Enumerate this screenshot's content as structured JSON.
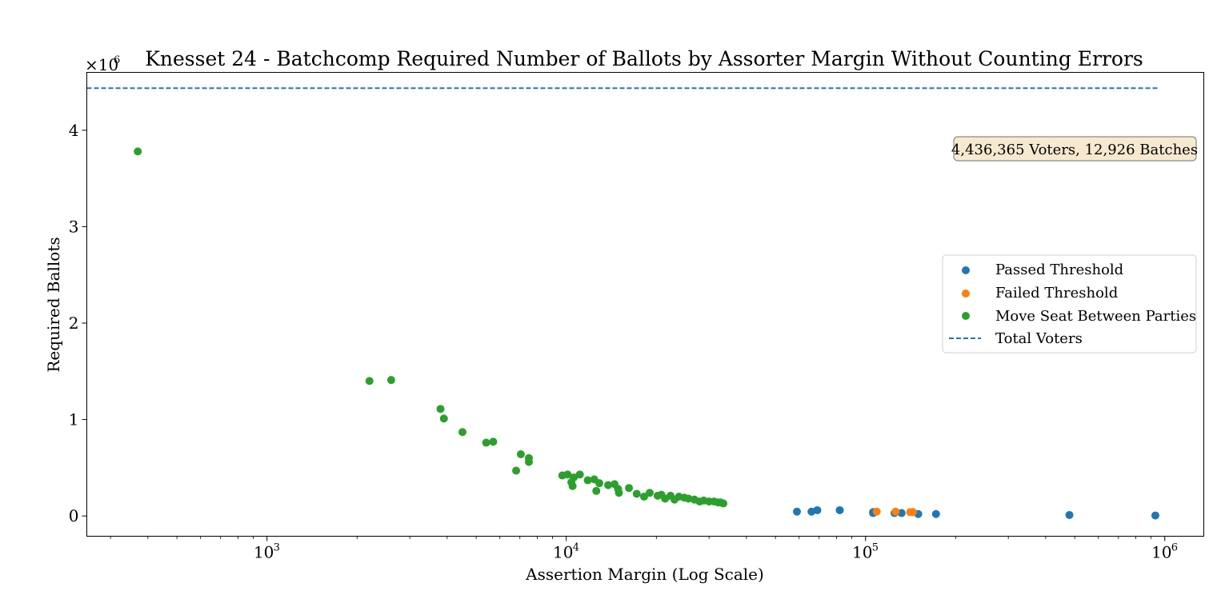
{
  "chart_data": {
    "type": "scatter",
    "title": "Knesset 24 - Batchcomp Required Number of Ballots by Assorter Margin Without Counting Errors",
    "xlabel": "Assertion Margin (Log Scale)",
    "ylabel": "Required Ballots",
    "x_scale": "log",
    "xlim": [
      250,
      1350000
    ],
    "ylim": [
      -210000,
      4600000
    ],
    "y_multiplier_label": "×10",
    "y_multiplier_exponent": "6",
    "x_ticks": [
      {
        "value": 1000,
        "base": "10",
        "exp": "3"
      },
      {
        "value": 10000,
        "base": "10",
        "exp": "4"
      },
      {
        "value": 100000,
        "base": "10",
        "exp": "5"
      },
      {
        "value": 1000000,
        "base": "10",
        "exp": "6"
      }
    ],
    "y_ticks": [
      {
        "value": 0,
        "label": "0"
      },
      {
        "value": 1000000,
        "label": "1"
      },
      {
        "value": 2000000,
        "label": "2"
      },
      {
        "value": 3000000,
        "label": "3"
      },
      {
        "value": 4000000,
        "label": "4"
      }
    ],
    "annotation": "4,436,365 Voters, 12,926 Batches",
    "legend_position": "center-right",
    "reference_line": {
      "name": "Total Voters",
      "y": 4436365,
      "x_range": [
        250,
        950000
      ],
      "color": "#1f77b4",
      "style": "dashed"
    },
    "series": [
      {
        "name": "Passed Threshold",
        "color": "#1f77b4",
        "points": [
          [
            59000,
            45000
          ],
          [
            66000,
            45000
          ],
          [
            69000,
            60000
          ],
          [
            82000,
            60000
          ],
          [
            106000,
            40000
          ],
          [
            106000,
            30000
          ],
          [
            125000,
            30000
          ],
          [
            132000,
            30000
          ],
          [
            150000,
            20000
          ],
          [
            172000,
            20000
          ],
          [
            480000,
            10000
          ],
          [
            930000,
            5000
          ]
        ]
      },
      {
        "name": "Failed Threshold",
        "color": "#ff7f0e",
        "points": [
          [
            109000,
            45000
          ],
          [
            126000,
            45000
          ],
          [
            141000,
            40000
          ],
          [
            144000,
            40000
          ]
        ]
      },
      {
        "name": "Move Seat Between Parties",
        "color": "#2ca02c",
        "points": [
          [
            370,
            3780000
          ],
          [
            2200,
            1400000
          ],
          [
            2600,
            1410000
          ],
          [
            3800,
            1110000
          ],
          [
            3900,
            1010000
          ],
          [
            4500,
            870000
          ],
          [
            5400,
            760000
          ],
          [
            5700,
            770000
          ],
          [
            6800,
            470000
          ],
          [
            7050,
            640000
          ],
          [
            7500,
            600000
          ],
          [
            7500,
            560000
          ],
          [
            9700,
            420000
          ],
          [
            10100,
            430000
          ],
          [
            10400,
            350000
          ],
          [
            10500,
            310000
          ],
          [
            10600,
            400000
          ],
          [
            11100,
            430000
          ],
          [
            11800,
            370000
          ],
          [
            12400,
            380000
          ],
          [
            12600,
            260000
          ],
          [
            12900,
            340000
          ],
          [
            13800,
            320000
          ],
          [
            14500,
            330000
          ],
          [
            14900,
            280000
          ],
          [
            15000,
            240000
          ],
          [
            16200,
            290000
          ],
          [
            17200,
            230000
          ],
          [
            18200,
            200000
          ],
          [
            19000,
            240000
          ],
          [
            20200,
            210000
          ],
          [
            20800,
            220000
          ],
          [
            21400,
            180000
          ],
          [
            22300,
            210000
          ],
          [
            23000,
            170000
          ],
          [
            23800,
            200000
          ],
          [
            24800,
            190000
          ],
          [
            25600,
            180000
          ],
          [
            26800,
            170000
          ],
          [
            27900,
            150000
          ],
          [
            28800,
            160000
          ],
          [
            30000,
            150000
          ],
          [
            31200,
            150000
          ],
          [
            32200,
            140000
          ],
          [
            32800,
            140000
          ],
          [
            33500,
            130000
          ]
        ]
      }
    ]
  }
}
